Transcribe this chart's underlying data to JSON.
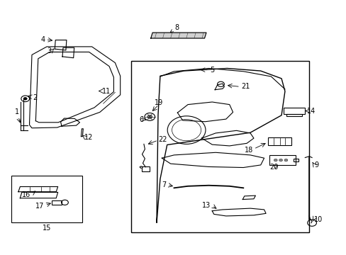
{
  "bg_color": "#ffffff",
  "fig_width": 4.89,
  "fig_height": 3.6,
  "dpi": 100,
  "line_color": "#000000",
  "label_fontsize": 7
}
